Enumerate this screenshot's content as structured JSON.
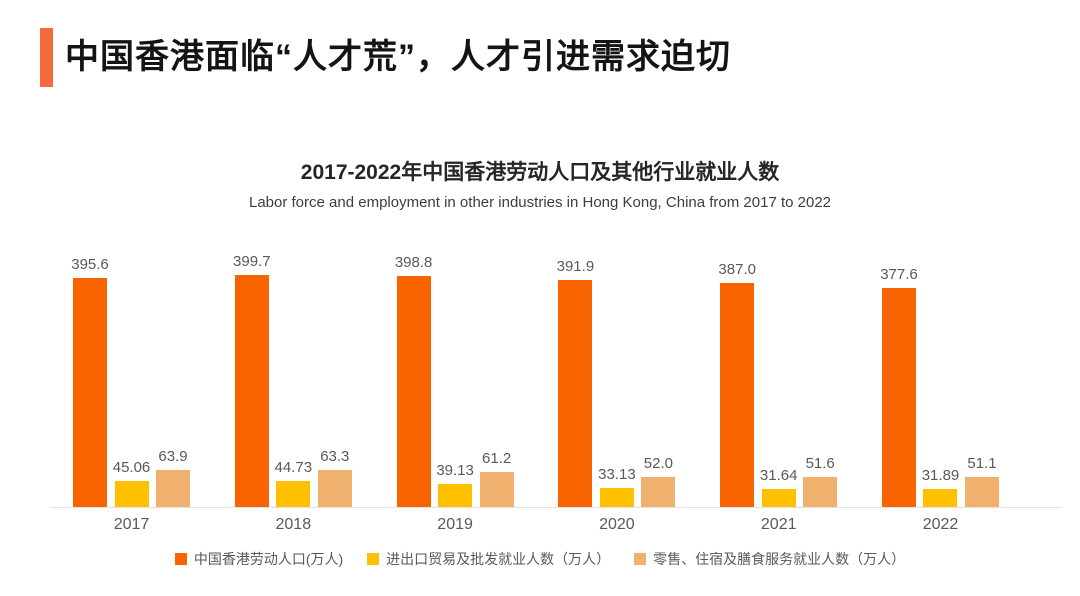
{
  "slide": {
    "title": "中国香港面临“人才荒”，人才引进需求迫切",
    "accent_color": "#F5693D"
  },
  "chart": {
    "title": "2017-2022年中国香港劳动人口及其他行业就业人数",
    "subtitle": "Labor force and employment in other industries in Hong Kong, China from 2017 to 2022"
  },
  "chart_data": {
    "type": "bar",
    "categories": [
      "2017",
      "2018",
      "2019",
      "2020",
      "2021",
      "2022"
    ],
    "series": [
      {
        "name": "中国香港劳动人口(万人)",
        "color": "#FA6400",
        "values": [
          395.6,
          399.7,
          398.8,
          391.9,
          387.0,
          377.6
        ],
        "labels": [
          "395.6",
          "399.7",
          "398.8",
          "391.9",
          "387.0",
          "377.6"
        ]
      },
      {
        "name": "进出口贸易及批发就业人数（万人）",
        "color": "#FFC000",
        "values": [
          45.06,
          44.73,
          39.13,
          33.13,
          31.64,
          31.89
        ],
        "labels": [
          "45.06",
          "44.73",
          "39.13",
          "33.13",
          "31.64",
          "31.89"
        ]
      },
      {
        "name": "零售、住宿及膳食服务就业人数（万人）",
        "color": "#F0B06E",
        "values": [
          63.9,
          63.3,
          61.2,
          52.0,
          51.6,
          51.1
        ],
        "labels": [
          "63.9",
          "63.3",
          "61.2",
          "52.0",
          "51.6",
          "51.1"
        ]
      }
    ],
    "ylim": [
      0,
      440
    ],
    "grid": false,
    "value_labels": true,
    "legend_position": "bottom"
  }
}
